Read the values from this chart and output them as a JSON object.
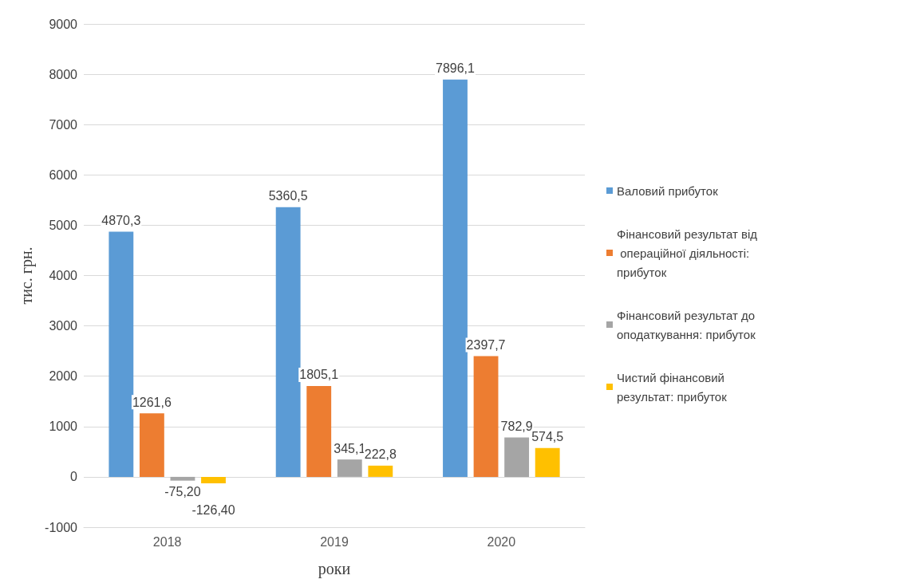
{
  "chart_data": {
    "type": "bar",
    "xlabel": "роки",
    "ylabel": "тис. грн.",
    "categories": [
      "2018",
      "2019",
      "2020"
    ],
    "series": [
      {
        "name": "Валовий прибуток",
        "color": "#5b9bd5",
        "values": [
          4870.3,
          5360.5,
          7896.1
        ],
        "value_labels": [
          "4870,3",
          "5360,5",
          "7896,1"
        ]
      },
      {
        "name": "Фінансовий результат від операційної діяльності: прибуток",
        "color": "#ed7d31",
        "values": [
          1261.6,
          1805.1,
          2397.7
        ],
        "value_labels": [
          "1261,6",
          "1805,1",
          "2397,7"
        ]
      },
      {
        "name": "Фінансовий результат до оподаткування: прибуток",
        "color": "#a5a5a5",
        "values": [
          -75.2,
          345.1,
          782.9
        ],
        "value_labels": [
          "-75,20",
          "345,1",
          "782,9"
        ]
      },
      {
        "name": "Чистий фінансовий результат: прибуток",
        "color": "#ffc000",
        "values": [
          -126.4,
          222.8,
          574.5
        ],
        "value_labels": [
          "-126,40",
          "222,8",
          "574,5"
        ]
      }
    ],
    "ylim": [
      -1000,
      9000
    ],
    "yticks": [
      -1000,
      0,
      1000,
      2000,
      3000,
      4000,
      5000,
      6000,
      7000,
      8000,
      9000
    ],
    "grid": "y",
    "legend": "right"
  }
}
